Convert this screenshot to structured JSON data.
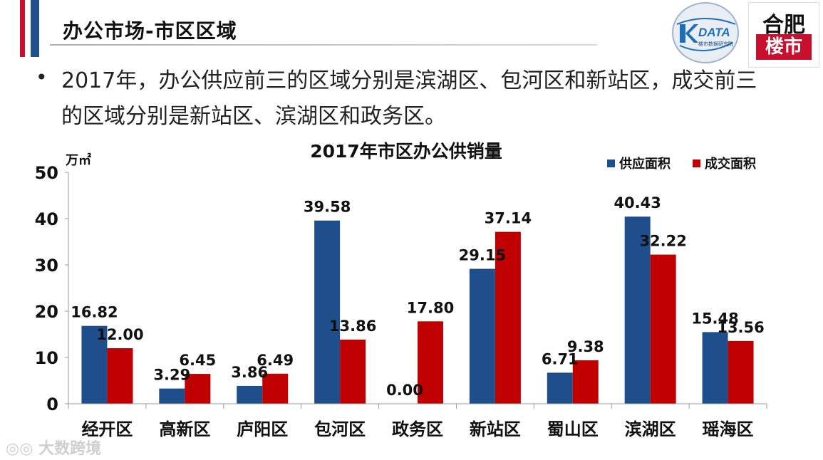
{
  "header": {
    "title": "办公市场-市区区域"
  },
  "logos": {
    "kdata_text": "DATA",
    "kdata_sub": "楼市数据研究院",
    "hefei_top": "合肥",
    "hefei_bottom": "楼市"
  },
  "bullet": {
    "symbol": "•",
    "text": "2017年，办公供应前三的区域分别是滨湖区、包河区和新站区，成交前三的区域分别是新站区、滨湖区和政务区。"
  },
  "watermark": "大数跨境",
  "chart_data": {
    "type": "bar",
    "title": "2017年市区办公供销量",
    "ylabel": "万㎡",
    "xlabel": "",
    "ylim": [
      0,
      50
    ],
    "yticks": [
      0,
      10,
      20,
      30,
      40,
      50
    ],
    "legend_position": "top-right",
    "categories": [
      "经开区",
      "高新区",
      "庐阳区",
      "包河区",
      "政务区",
      "新站区",
      "蜀山区",
      "滨湖区",
      "瑶海区"
    ],
    "series": [
      {
        "name": "供应面积",
        "color": "#1f4e8c",
        "values": [
          16.82,
          3.29,
          3.86,
          39.58,
          0.0,
          29.15,
          6.71,
          40.43,
          15.48
        ],
        "labels": [
          "16.82",
          "3.29",
          "3.86",
          "39.58",
          "0.00",
          "29.15",
          "6.71",
          "40.43",
          "15.48"
        ]
      },
      {
        "name": "成交面积",
        "color": "#c00000",
        "values": [
          12.0,
          6.45,
          6.49,
          13.86,
          17.8,
          37.14,
          9.38,
          32.22,
          13.56
        ],
        "labels": [
          "12.00",
          "6.45",
          "6.49",
          "13.86",
          "17.80",
          "37.14",
          "9.38",
          "32.22",
          "13.56"
        ]
      }
    ]
  }
}
